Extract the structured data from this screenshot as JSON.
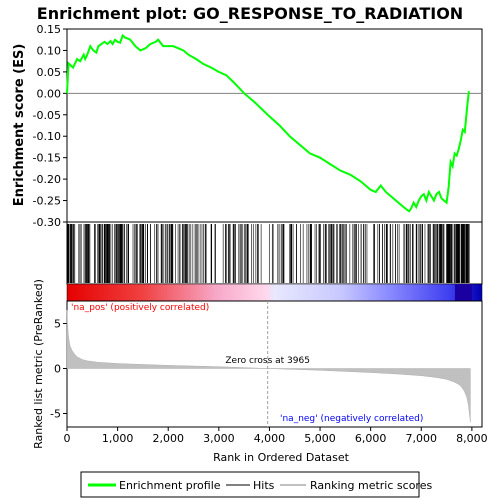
{
  "chart_data": {
    "type": "line",
    "title": "Enrichment plot: GO_RESPONSE_TO_RADIATION",
    "xlabel": "Rank in Ordered Dataset",
    "panels": {
      "enrichment": {
        "ylabel": "Enrichment score (ES)",
        "ylim": [
          -0.3,
          0.15
        ],
        "yticks": [
          "0.15",
          "0.10",
          "0.05",
          "0.00",
          "-0.05",
          "-0.10",
          "-0.15",
          "-0.20",
          "-0.25",
          "-0.30"
        ],
        "ytick_values": [
          0.15,
          0.1,
          0.05,
          0.0,
          -0.05,
          -0.1,
          -0.15,
          -0.2,
          -0.25,
          -0.3
        ],
        "series": [
          {
            "name": "Enrichment profile",
            "color": "#00ff00",
            "x": [
              0,
              30,
              120,
              200,
              260,
              330,
              360,
              400,
              460,
              520,
              580,
              620,
              680,
              740,
              800,
              860,
              900,
              950,
              1000,
              1050,
              1100,
              1150,
              1250,
              1350,
              1450,
              1550,
              1650,
              1750,
              1800,
              1900,
              2000,
              2100,
              2200,
              2300,
              2400,
              2550,
              2700,
              2850,
              3000,
              3150,
              3300,
              3500,
              3700,
              3965,
              4200,
              4400,
              4600,
              4800,
              5000,
              5200,
              5400,
              5600,
              5800,
              5900,
              6000,
              6100,
              6200,
              6300,
              6400,
              6500,
              6600,
              6700,
              6760,
              6800,
              6850,
              6900,
              6950,
              7000,
              7050,
              7100,
              7150,
              7200,
              7250,
              7300,
              7350,
              7400,
              7450,
              7500,
              7540,
              7580,
              7620,
              7660,
              7700,
              7740,
              7780,
              7820,
              7860,
              7900,
              7940
            ],
            "y": [
              0.0,
              0.07,
              0.06,
              0.08,
              0.075,
              0.09,
              0.08,
              0.09,
              0.11,
              0.1,
              0.095,
              0.11,
              0.115,
              0.12,
              0.115,
              0.122,
              0.115,
              0.125,
              0.12,
              0.118,
              0.135,
              0.13,
              0.125,
              0.11,
              0.1,
              0.105,
              0.115,
              0.12,
              0.125,
              0.11,
              0.11,
              0.11,
              0.105,
              0.1,
              0.09,
              0.08,
              0.068,
              0.06,
              0.05,
              0.042,
              0.025,
              0.0,
              -0.02,
              -0.05,
              -0.075,
              -0.1,
              -0.12,
              -0.14,
              -0.15,
              -0.165,
              -0.18,
              -0.19,
              -0.205,
              -0.215,
              -0.225,
              -0.23,
              -0.215,
              -0.23,
              -0.24,
              -0.25,
              -0.26,
              -0.27,
              -0.275,
              -0.268,
              -0.255,
              -0.265,
              -0.25,
              -0.24,
              -0.235,
              -0.25,
              -0.23,
              -0.24,
              -0.25,
              -0.235,
              -0.23,
              -0.245,
              -0.25,
              -0.255,
              -0.22,
              -0.16,
              -0.17,
              -0.14,
              -0.145,
              -0.13,
              -0.11,
              -0.085,
              -0.09,
              -0.04,
              0.005
            ]
          }
        ],
        "zero_line_color": "#808080"
      },
      "hits": {
        "legend_name": "Hits",
        "gene_count": 410
      },
      "ranked_metric": {
        "ylabel": "Ranked list metric (PreRanked)",
        "ylim": [
          -6.5,
          7.5
        ],
        "yticks": [
          "5",
          "0",
          "-5"
        ],
        "ytick_values": [
          5,
          0,
          -5
        ],
        "series": [
          {
            "name": "Ranking metric scores",
            "color": "#c0c0c0",
            "x": [
              0,
              10,
              30,
              60,
              100,
              150,
              200,
              300,
              400,
              600,
              1000,
              2000,
              3000,
              3965,
              5000,
              6000,
              6500,
              7000,
              7300,
              7500,
              7650,
              7750,
              7800,
              7850,
              7900,
              7930,
              7950,
              7970
            ],
            "y": [
              6.5,
              5.0,
              3.5,
              2.5,
              2.0,
              1.6,
              1.3,
              1.0,
              0.85,
              0.7,
              0.55,
              0.35,
              0.2,
              0.0,
              -0.2,
              -0.45,
              -0.6,
              -0.8,
              -1.0,
              -1.2,
              -1.5,
              -1.8,
              -2.1,
              -2.5,
              -3.2,
              -4.0,
              -5.0,
              -6.0
            ]
          }
        ],
        "zero_cross_label": "Zero cross at 3965",
        "zero_cross_x": 3965,
        "pos_label": "'na_pos' (positively correlated)",
        "neg_label": "'na_neg' (negatively correlated)",
        "pos_label_color": "#ff0000",
        "neg_label_color": "#0000ff"
      }
    },
    "x_axis": {
      "xlim": [
        0,
        8200
      ],
      "xticks": [
        "0",
        "1,000",
        "2,000",
        "3,000",
        "4,000",
        "5,000",
        "6,000",
        "7,000",
        "8,000"
      ],
      "xtick_values": [
        0,
        1000,
        2000,
        3000,
        4000,
        5000,
        6000,
        7000,
        8000
      ]
    },
    "legend": {
      "placement": "bottom",
      "items": [
        {
          "label": "Enrichment profile",
          "color": "#00ff00"
        },
        {
          "label": "Hits",
          "color": "#808080"
        },
        {
          "label": "Ranking metric scores",
          "color": "#c0c0c0"
        }
      ]
    },
    "colors": {
      "gradient_red": "#ff0000",
      "gradient_blue": "#0000ff",
      "line_green": "#00ff00"
    }
  }
}
